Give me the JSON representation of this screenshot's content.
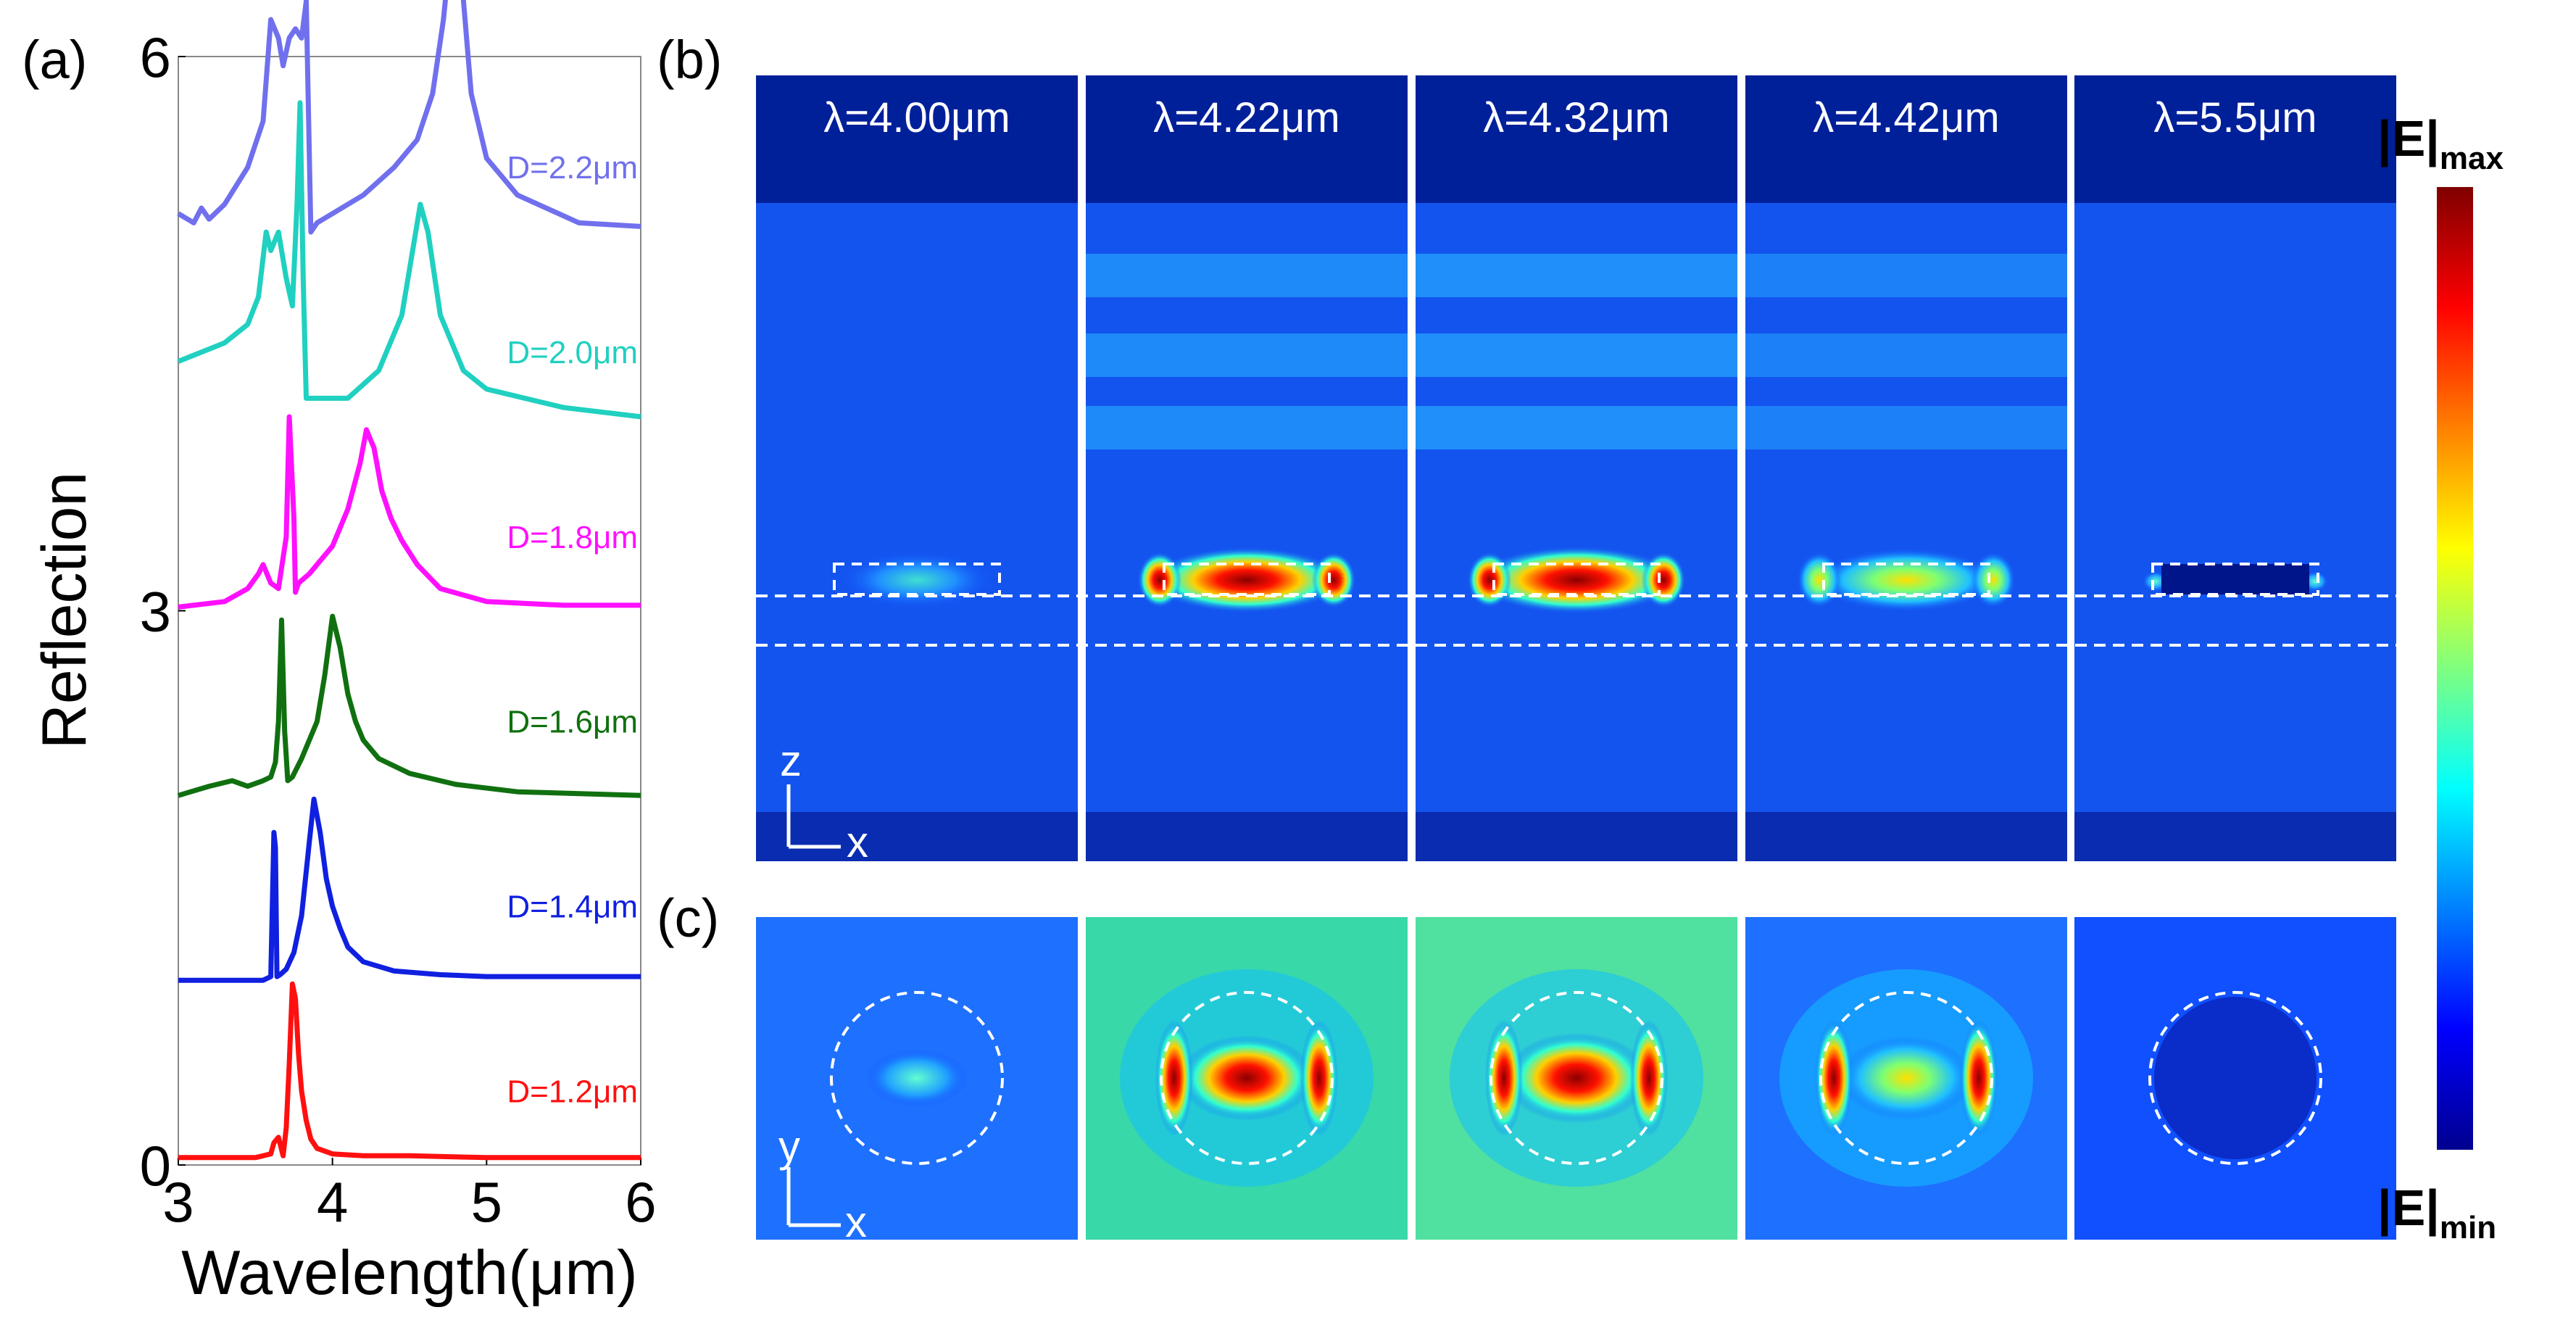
{
  "panels": {
    "a": "(a)",
    "b": "(b)",
    "c": "(c)"
  },
  "chart_data": [
    {
      "type": "line",
      "panel": "(a)",
      "xlabel": "Wavelength(μm)",
      "ylabel": "Reflection",
      "xlim": [
        3,
        6
      ],
      "ylim": [
        0,
        6
      ],
      "xticks": [
        "3",
        "4",
        "5",
        "6"
      ],
      "yticks": [
        "0",
        "3",
        "6"
      ],
      "series": [
        {
          "name": "D=1.2μm",
          "color": "#ff1010",
          "offset": 0.0,
          "x": [
            3.0,
            3.3,
            3.5,
            3.55,
            3.6,
            3.62,
            3.65,
            3.68,
            3.7,
            3.72,
            3.74,
            3.76,
            3.78,
            3.8,
            3.83,
            3.86,
            3.9,
            4.0,
            4.2,
            4.5,
            5.0,
            6.0
          ],
          "y": [
            0.04,
            0.04,
            0.04,
            0.05,
            0.06,
            0.12,
            0.15,
            0.05,
            0.2,
            0.55,
            0.98,
            0.9,
            0.6,
            0.4,
            0.24,
            0.14,
            0.09,
            0.06,
            0.05,
            0.05,
            0.04,
            0.04
          ]
        },
        {
          "name": "D=1.4μm",
          "color": "#1020e0",
          "offset": 1.0,
          "x": [
            3.0,
            3.3,
            3.55,
            3.6,
            3.62,
            3.63,
            3.64,
            3.66,
            3.7,
            3.75,
            3.8,
            3.85,
            3.88,
            3.92,
            3.96,
            4.0,
            4.05,
            4.1,
            4.2,
            4.4,
            4.7,
            5.0,
            6.0
          ],
          "y": [
            0.0,
            0.0,
            0.0,
            0.02,
            0.8,
            0.72,
            0.02,
            0.03,
            0.06,
            0.15,
            0.35,
            0.75,
            0.98,
            0.8,
            0.55,
            0.4,
            0.28,
            0.18,
            0.1,
            0.05,
            0.03,
            0.02,
            0.02
          ]
        },
        {
          "name": "D=1.6μm",
          "color": "#107010",
          "offset": 2.0,
          "x": [
            3.0,
            3.2,
            3.35,
            3.45,
            3.55,
            3.6,
            3.63,
            3.65,
            3.67,
            3.69,
            3.71,
            3.74,
            3.8,
            3.9,
            3.95,
            4.0,
            4.05,
            4.1,
            4.15,
            4.2,
            4.3,
            4.5,
            4.8,
            5.2,
            6.0
          ],
          "y": [
            0.0,
            0.05,
            0.08,
            0.05,
            0.08,
            0.1,
            0.18,
            0.4,
            0.95,
            0.35,
            0.08,
            0.1,
            0.2,
            0.4,
            0.65,
            0.97,
            0.8,
            0.55,
            0.4,
            0.3,
            0.2,
            0.12,
            0.06,
            0.02,
            0.0
          ]
        },
        {
          "name": "D=1.8μm",
          "color": "#ff10ff",
          "offset": 3.0,
          "x": [
            3.0,
            3.3,
            3.45,
            3.52,
            3.55,
            3.6,
            3.65,
            3.7,
            3.72,
            3.75,
            3.76,
            3.78,
            3.85,
            4.0,
            4.1,
            4.18,
            4.22,
            4.27,
            4.32,
            4.38,
            4.45,
            4.55,
            4.7,
            5.0,
            5.5,
            6.0
          ],
          "y": [
            0.02,
            0.05,
            0.12,
            0.2,
            0.25,
            0.15,
            0.12,
            0.4,
            1.05,
            0.5,
            0.1,
            0.15,
            0.2,
            0.35,
            0.55,
            0.8,
            0.98,
            0.88,
            0.65,
            0.5,
            0.38,
            0.25,
            0.12,
            0.05,
            0.03,
            0.03
          ]
        },
        {
          "name": "D=2.0μm",
          "color": "#20d0c0",
          "offset": 4.0,
          "x": [
            3.0,
            3.3,
            3.45,
            3.52,
            3.57,
            3.6,
            3.65,
            3.7,
            3.74,
            3.77,
            3.79,
            3.81,
            3.83,
            3.9,
            4.1,
            4.3,
            4.45,
            4.52,
            4.57,
            4.62,
            4.7,
            4.85,
            5.0,
            5.5,
            6.0
          ],
          "y": [
            0.35,
            0.45,
            0.55,
            0.7,
            1.05,
            0.95,
            1.05,
            0.8,
            0.65,
            1.2,
            1.75,
            0.8,
            0.15,
            0.15,
            0.15,
            0.3,
            0.6,
            0.95,
            1.2,
            1.05,
            0.6,
            0.3,
            0.2,
            0.1,
            0.05
          ]
        },
        {
          "name": "D=2.2μm",
          "color": "#7070ee",
          "offset": 5.0,
          "x": [
            3.0,
            3.1,
            3.15,
            3.2,
            3.3,
            3.45,
            3.55,
            3.6,
            3.65,
            3.68,
            3.72,
            3.76,
            3.8,
            3.83,
            3.86,
            3.9,
            4.0,
            4.2,
            4.4,
            4.55,
            4.65,
            4.72,
            4.78,
            4.82,
            4.9,
            5.0,
            5.2,
            5.6,
            6.0
          ],
          "y": [
            0.15,
            0.1,
            0.18,
            0.12,
            0.2,
            0.4,
            0.65,
            1.2,
            1.1,
            0.95,
            1.1,
            1.15,
            1.1,
            1.3,
            0.05,
            0.1,
            0.15,
            0.25,
            0.4,
            0.55,
            0.8,
            1.2,
            1.7,
            1.6,
            0.8,
            0.45,
            0.25,
            0.1,
            0.08
          ]
        }
      ]
    },
    {
      "type": "heatmap",
      "panel": "(b)",
      "view": "xz cross-section",
      "axes": {
        "vertical": "z",
        "horizontal": "x"
      },
      "wavelengths": [
        "λ=4.00μm",
        "λ=4.22μm",
        "λ=4.32μm",
        "λ=4.42μm",
        "λ=5.5μm"
      ],
      "relative_field_strength": [
        0.45,
        0.9,
        1.0,
        0.75,
        0.2
      ]
    },
    {
      "type": "heatmap",
      "panel": "(c)",
      "view": "xy cross-section",
      "axes": {
        "vertical": "y",
        "horizontal": "x"
      },
      "relative_field_strength": [
        0.4,
        0.85,
        1.0,
        0.8,
        0.15
      ]
    }
  ],
  "colorbar": {
    "max_label": "|E|",
    "max_sub": "max",
    "min_label": "|E|",
    "min_sub": "min"
  }
}
